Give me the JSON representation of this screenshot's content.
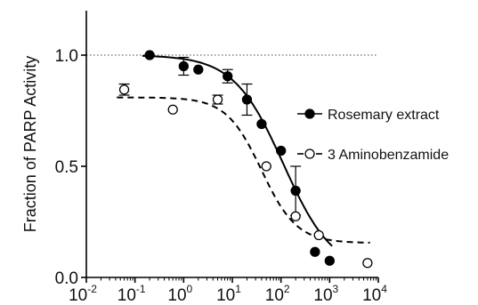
{
  "chart_data": {
    "type": "scatter",
    "ylabel": "Fraction of PARP Activity",
    "x_scale": "log",
    "xlim": [
      0.01,
      10000
    ],
    "ylim": [
      0.0,
      1.2
    ],
    "reference_line_y": 1.0,
    "x_ticks": [
      {
        "value": 0.01,
        "base": "10",
        "exp": "-2"
      },
      {
        "value": 0.1,
        "base": "10",
        "exp": "-1"
      },
      {
        "value": 1,
        "base": "10",
        "exp": "0"
      },
      {
        "value": 10,
        "base": "10",
        "exp": "1"
      },
      {
        "value": 100,
        "base": "10",
        "exp": "2"
      },
      {
        "value": 1000,
        "base": "10",
        "exp": "3"
      },
      {
        "value": 10000,
        "base": "10",
        "exp": "4"
      }
    ],
    "y_ticks": [
      {
        "value": 0.0,
        "label": "0.0"
      },
      {
        "value": 0.5,
        "label": "0.5"
      },
      {
        "value": 1.0,
        "label": "1.0"
      }
    ],
    "legend_position": "right",
    "series": [
      {
        "name": "Rosemary extract",
        "marker": "filled-circle",
        "line_style": "solid",
        "color": "#000000",
        "points": [
          {
            "x": 0.2,
            "y": 1.0
          },
          {
            "x": 1.0,
            "y": 0.95,
            "err": 0.04
          },
          {
            "x": 2.0,
            "y": 0.935
          },
          {
            "x": 8.0,
            "y": 0.905,
            "err": 0.03
          },
          {
            "x": 20.0,
            "y": 0.8,
            "err": 0.07
          },
          {
            "x": 40.0,
            "y": 0.69
          },
          {
            "x": 100.0,
            "y": 0.57
          },
          {
            "x": 200.0,
            "y": 0.39,
            "err": 0.11
          },
          {
            "x": 500.0,
            "y": 0.115
          },
          {
            "x": 1000.0,
            "y": 0.075
          }
        ],
        "fit": {
          "top": 1.0,
          "bottom": 0.02,
          "log_ic50": 2.05,
          "hill": 0.85
        }
      },
      {
        "name": "3 Aminobenzamide",
        "marker": "open-circle",
        "line_style": "dashed",
        "color": "#000000",
        "points": [
          {
            "x": 0.06,
            "y": 0.845,
            "err": 0.025
          },
          {
            "x": 0.6,
            "y": 0.755
          },
          {
            "x": 5.0,
            "y": 0.8,
            "err": 0.02
          },
          {
            "x": 50.0,
            "y": 0.5
          },
          {
            "x": 200.0,
            "y": 0.275
          },
          {
            "x": 600.0,
            "y": 0.19
          },
          {
            "x": 6000.0,
            "y": 0.065
          }
        ],
        "fit": {
          "top": 0.81,
          "bottom": 0.155,
          "log_ic50": 1.6,
          "hill": 1.2
        }
      }
    ]
  }
}
